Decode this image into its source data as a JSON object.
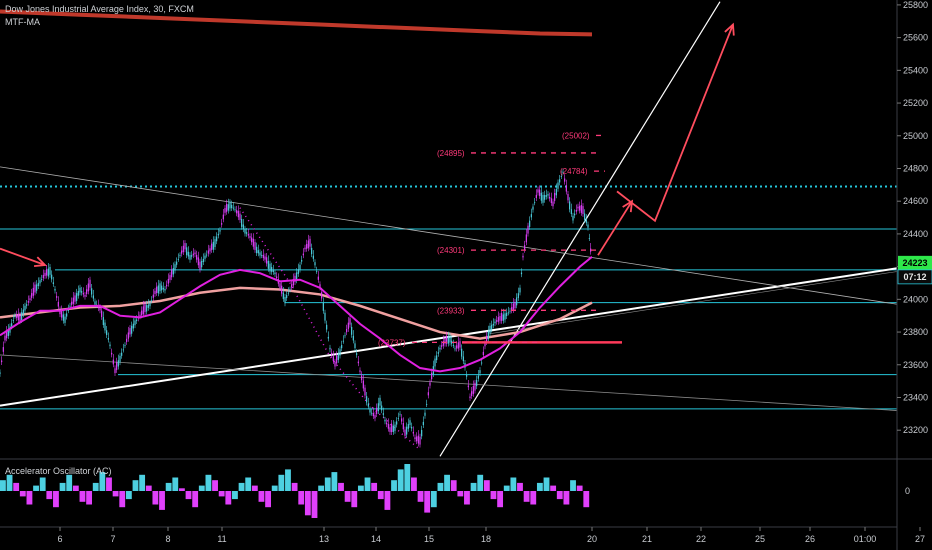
{
  "title": "Dow Jones Industrial Average Index, 30, FXCM",
  "indicator_main": "MTF-MA",
  "indicator_sub": "Accelerator Oscillator (AC)",
  "colors": {
    "background": "#000000",
    "support_line": "#26c6da",
    "price_up": "#4dd0e1",
    "price_down": "#e040fb",
    "ma_fast": "#e020e0",
    "ma_slow": "#f0a0a0",
    "ma_long": "#c0392b",
    "annotation": "#ff3a7a",
    "trend_white": "#ffffff",
    "badge_current": "#2ee84a",
    "badge_countdown": "#26c6da"
  },
  "chart_data": {
    "type": "line",
    "y_axis": {
      "ticks": [
        25800,
        25600,
        25400,
        25200,
        25000,
        24800,
        24600,
        24400,
        24200,
        24000,
        23800,
        23600,
        23400,
        23200
      ],
      "range": [
        23030,
        25830
      ]
    },
    "x_axis": {
      "ticks": [
        "6",
        "7",
        "8",
        "11",
        "13",
        "14",
        "15",
        "18",
        "20",
        "21",
        "22",
        "25",
        "26",
        "01:00",
        "27"
      ]
    },
    "current_price_label": "24223",
    "countdown_label": "07:12",
    "price_series": [
      [
        0,
        23550
      ],
      [
        5,
        23760
      ],
      [
        10,
        23820
      ],
      [
        15,
        23900
      ],
      [
        20,
        23880
      ],
      [
        25,
        23950
      ],
      [
        30,
        24000
      ],
      [
        35,
        24060
      ],
      [
        40,
        24110
      ],
      [
        45,
        24150
      ],
      [
        50,
        24180
      ],
      [
        55,
        24060
      ],
      [
        60,
        23920
      ],
      [
        65,
        23880
      ],
      [
        70,
        23960
      ],
      [
        75,
        24000
      ],
      [
        80,
        24060
      ],
      [
        85,
        24020
      ],
      [
        90,
        24090
      ],
      [
        95,
        23980
      ],
      [
        100,
        23940
      ],
      [
        105,
        23840
      ],
      [
        110,
        23720
      ],
      [
        115,
        23560
      ],
      [
        120,
        23640
      ],
      [
        125,
        23720
      ],
      [
        130,
        23800
      ],
      [
        135,
        23860
      ],
      [
        140,
        23900
      ],
      [
        145,
        23940
      ],
      [
        150,
        23970
      ],
      [
        155,
        24040
      ],
      [
        160,
        24080
      ],
      [
        165,
        24060
      ],
      [
        170,
        24130
      ],
      [
        175,
        24200
      ],
      [
        180,
        24270
      ],
      [
        185,
        24320
      ],
      [
        190,
        24260
      ],
      [
        195,
        24280
      ],
      [
        200,
        24200
      ],
      [
        205,
        24260
      ],
      [
        210,
        24300
      ],
      [
        215,
        24350
      ],
      [
        220,
        24420
      ],
      [
        225,
        24540
      ],
      [
        230,
        24580
      ],
      [
        235,
        24550
      ],
      [
        240,
        24500
      ],
      [
        245,
        24420
      ],
      [
        250,
        24380
      ],
      [
        255,
        24320
      ],
      [
        260,
        24280
      ],
      [
        265,
        24250
      ],
      [
        270,
        24200
      ],
      [
        275,
        24160
      ],
      [
        280,
        24080
      ],
      [
        285,
        24000
      ],
      [
        290,
        24060
      ],
      [
        295,
        24120
      ],
      [
        300,
        24200
      ],
      [
        305,
        24310
      ],
      [
        310,
        24340
      ],
      [
        315,
        24220
      ],
      [
        320,
        24080
      ],
      [
        325,
        23900
      ],
      [
        330,
        23700
      ],
      [
        335,
        23600
      ],
      [
        340,
        23680
      ],
      [
        345,
        23780
      ],
      [
        350,
        23860
      ],
      [
        355,
        23720
      ],
      [
        360,
        23560
      ],
      [
        365,
        23430
      ],
      [
        370,
        23320
      ],
      [
        375,
        23280
      ],
      [
        380,
        23380
      ],
      [
        385,
        23260
      ],
      [
        390,
        23200
      ],
      [
        395,
        23220
      ],
      [
        400,
        23300
      ],
      [
        405,
        23180
      ],
      [
        410,
        23250
      ],
      [
        415,
        23150
      ],
      [
        420,
        23130
      ],
      [
        425,
        23300
      ],
      [
        430,
        23480
      ],
      [
        435,
        23620
      ],
      [
        440,
        23700
      ],
      [
        445,
        23740
      ],
      [
        450,
        23760
      ],
      [
        455,
        23700
      ],
      [
        460,
        23720
      ],
      [
        465,
        23600
      ],
      [
        470,
        23400
      ],
      [
        475,
        23460
      ],
      [
        480,
        23560
      ],
      [
        485,
        23720
      ],
      [
        490,
        23820
      ],
      [
        495,
        23860
      ],
      [
        500,
        23880
      ],
      [
        505,
        23900
      ],
      [
        510,
        23930
      ],
      [
        515,
        23960
      ],
      [
        520,
        24060
      ],
      [
        523,
        24260
      ],
      [
        528,
        24420
      ],
      [
        533,
        24560
      ],
      [
        538,
        24660
      ],
      [
        543,
        24620
      ],
      [
        548,
        24640
      ],
      [
        553,
        24580
      ],
      [
        558,
        24700
      ],
      [
        563,
        24780
      ],
      [
        568,
        24620
      ],
      [
        573,
        24500
      ],
      [
        578,
        24560
      ],
      [
        583,
        24540
      ],
      [
        588,
        24450
      ],
      [
        592,
        24223
      ]
    ],
    "ma_fast": [
      [
        0,
        23780
      ],
      [
        20,
        23860
      ],
      [
        40,
        23930
      ],
      [
        60,
        23930
      ],
      [
        80,
        23960
      ],
      [
        100,
        23960
      ],
      [
        120,
        23900
      ],
      [
        140,
        23890
      ],
      [
        160,
        23920
      ],
      [
        180,
        24000
      ],
      [
        200,
        24080
      ],
      [
        220,
        24150
      ],
      [
        240,
        24180
      ],
      [
        260,
        24160
      ],
      [
        280,
        24110
      ],
      [
        300,
        24120
      ],
      [
        320,
        24070
      ],
      [
        340,
        23960
      ],
      [
        360,
        23850
      ],
      [
        380,
        23760
      ],
      [
        400,
        23660
      ],
      [
        420,
        23580
      ],
      [
        440,
        23560
      ],
      [
        460,
        23580
      ],
      [
        480,
        23630
      ],
      [
        500,
        23700
      ],
      [
        520,
        23800
      ],
      [
        540,
        23950
      ],
      [
        560,
        24080
      ],
      [
        580,
        24200
      ],
      [
        592,
        24260
      ]
    ],
    "ma_slow": [
      [
        0,
        23890
      ],
      [
        40,
        23920
      ],
      [
        80,
        23950
      ],
      [
        120,
        23960
      ],
      [
        160,
        23990
      ],
      [
        200,
        24040
      ],
      [
        240,
        24070
      ],
      [
        280,
        24060
      ],
      [
        320,
        24030
      ],
      [
        360,
        23960
      ],
      [
        400,
        23880
      ],
      [
        440,
        23800
      ],
      [
        480,
        23760
      ],
      [
        520,
        23800
      ],
      [
        560,
        23880
      ],
      [
        592,
        23980
      ]
    ],
    "ma_long": [
      [
        0,
        25760
      ],
      [
        80,
        25740
      ],
      [
        160,
        25720
      ],
      [
        240,
        25700
      ],
      [
        320,
        25680
      ],
      [
        400,
        25660
      ],
      [
        480,
        25640
      ],
      [
        540,
        25625
      ],
      [
        592,
        25620
      ]
    ],
    "horizontal_levels": [
      {
        "y": 24690,
        "x0": 0,
        "x1": 897,
        "style": "dotted"
      },
      {
        "y": 24430,
        "x0": 0,
        "x1": 897,
        "style": "solid"
      },
      {
        "y": 24180,
        "x0": 55,
        "x1": 897,
        "style": "solid"
      },
      {
        "y": 23980,
        "x0": 285,
        "x1": 897,
        "style": "solid"
      },
      {
        "y": 23540,
        "x0": 118,
        "x1": 897,
        "style": "solid"
      },
      {
        "y": 23330,
        "x0": 0,
        "x1": 897,
        "style": "solid"
      }
    ],
    "trend_lines": [
      {
        "p1": [
          0,
          23350
        ],
        "p2": [
          897,
          24190
        ],
        "color": "#ffffff",
        "width": 2
      },
      {
        "p1": [
          440,
          23040
        ],
        "p2": [
          720,
          25820
        ],
        "color": "#ffffff",
        "width": 1.2
      },
      {
        "p1": [
          0,
          24810
        ],
        "p2": [
          897,
          23970
        ],
        "color": "#b0b0b0",
        "width": 0.8
      },
      {
        "p1": [
          0,
          23660
        ],
        "p2": [
          897,
          23320
        ],
        "color": "#8a8a8a",
        "width": 0.8
      },
      {
        "p1": [
          490,
          23790
        ],
        "p2": [
          897,
          24170
        ],
        "color": "#8a8a8a",
        "width": 0.6
      }
    ],
    "fibo_labels": [
      {
        "text": "(25002)",
        "x": 562,
        "y": 25002
      },
      {
        "text": "(24895)",
        "x": 437,
        "y": 24895
      },
      {
        "text": "(24784)",
        "x": 560,
        "y": 24784
      },
      {
        "text": "(24301)",
        "x": 437,
        "y": 24301
      },
      {
        "text": "(23933)",
        "x": 437,
        "y": 23933
      },
      {
        "text": "(23737)",
        "x": 378,
        "y": 23737
      }
    ],
    "projection_arrows": [
      {
        "points": [
          [
            0,
            24310
          ],
          [
            45,
            24210
          ]
        ]
      },
      {
        "points": [
          [
            598,
            24270
          ],
          [
            632,
            24600
          ]
        ]
      },
      {
        "points": [
          [
            617,
            24660
          ],
          [
            655,
            24480
          ],
          [
            733,
            25680
          ]
        ]
      }
    ],
    "oscillator": {
      "zero_label": "0",
      "range": [
        -1,
        1
      ],
      "values": [
        0.4,
        0.6,
        0.3,
        -0.2,
        -0.5,
        0.2,
        0.5,
        -0.3,
        -0.6,
        0.3,
        0.6,
        0.2,
        -0.4,
        -0.5,
        0.3,
        0.7,
        0.5,
        -0.2,
        -0.6,
        -0.3,
        0.4,
        0.6,
        0.2,
        -0.5,
        -0.7,
        0.3,
        0.5,
        0.1,
        -0.3,
        -0.6,
        0.2,
        0.6,
        0.4,
        -0.2,
        -0.5,
        -0.3,
        0.3,
        0.5,
        0.2,
        -0.4,
        -0.6,
        0.2,
        0.6,
        0.8,
        0.3,
        -0.5,
        -0.9,
        -1.0,
        0.2,
        0.5,
        0.7,
        0.3,
        -0.4,
        -0.6,
        0.2,
        0.5,
        0.3,
        -0.3,
        -0.7,
        0.4,
        0.8,
        1.0,
        0.5,
        -0.4,
        -0.8,
        -0.6,
        0.3,
        0.6,
        0.4,
        -0.2,
        -0.5,
        0.3,
        0.6,
        0.4,
        -0.3,
        -0.6,
        0.2,
        0.5,
        0.3,
        -0.4,
        -0.5,
        0.3,
        0.5,
        0.2,
        -0.3,
        -0.5,
        0.4,
        0.2,
        -0.6
      ]
    }
  }
}
